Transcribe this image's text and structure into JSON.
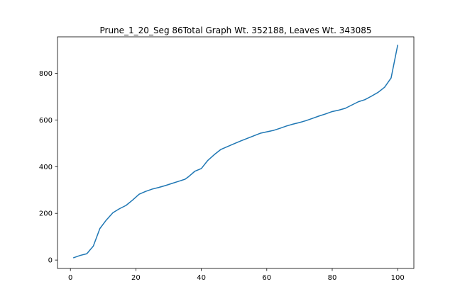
{
  "chart_data": {
    "type": "line",
    "title": "Prune_1_20_Seg 86Total Graph Wt. 352188, Leaves Wt. 343085",
    "xlabel": "",
    "ylabel": "",
    "xlim": [
      -3.95,
      104.95
    ],
    "ylim": [
      -36,
      956
    ],
    "xticks": [
      0,
      20,
      40,
      60,
      80,
      100
    ],
    "yticks": [
      0,
      200,
      400,
      600,
      800
    ],
    "grid": false,
    "legend": "none",
    "series": [
      {
        "color": "#1f77b4",
        "points": [
          [
            1,
            10
          ],
          [
            3,
            20
          ],
          [
            5,
            27
          ],
          [
            7,
            60
          ],
          [
            9,
            135
          ],
          [
            11,
            172
          ],
          [
            13,
            203
          ],
          [
            15,
            220
          ],
          [
            17,
            234
          ],
          [
            19,
            257
          ],
          [
            21,
            282
          ],
          [
            23,
            294
          ],
          [
            25,
            304
          ],
          [
            27,
            311
          ],
          [
            29,
            319
          ],
          [
            31,
            328
          ],
          [
            33,
            337
          ],
          [
            35,
            346
          ],
          [
            36,
            356
          ],
          [
            38,
            380
          ],
          [
            40,
            392
          ],
          [
            42,
            427
          ],
          [
            44,
            452
          ],
          [
            46,
            474
          ],
          [
            48,
            486
          ],
          [
            50,
            498
          ],
          [
            52,
            510
          ],
          [
            54,
            521
          ],
          [
            56,
            532
          ],
          [
            58,
            543
          ],
          [
            60,
            549
          ],
          [
            62,
            555
          ],
          [
            64,
            564
          ],
          [
            66,
            574
          ],
          [
            68,
            582
          ],
          [
            70,
            589
          ],
          [
            72,
            597
          ],
          [
            74,
            607
          ],
          [
            76,
            617
          ],
          [
            78,
            626
          ],
          [
            80,
            636
          ],
          [
            82,
            642
          ],
          [
            84,
            650
          ],
          [
            86,
            664
          ],
          [
            88,
            678
          ],
          [
            90,
            687
          ],
          [
            92,
            702
          ],
          [
            94,
            718
          ],
          [
            96,
            740
          ],
          [
            98,
            780
          ],
          [
            100,
            920
          ]
        ]
      }
    ]
  }
}
